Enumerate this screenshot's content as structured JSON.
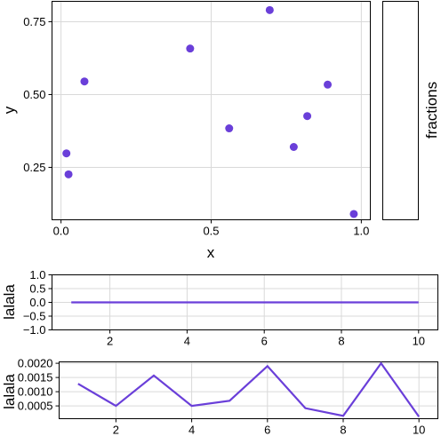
{
  "chart_data": [
    {
      "type": "scatter",
      "xlabel": "x",
      "ylabel": "y",
      "xlim": [
        -0.03,
        1.03
      ],
      "ylim": [
        0.07,
        0.82
      ],
      "xticks": [
        0.0,
        0.5,
        1.0
      ],
      "xtick_labels": [
        "0.0",
        "0.5",
        "1.0"
      ],
      "yticks": [
        0.25,
        0.5,
        0.75
      ],
      "ytick_labels": [
        "0.25",
        "0.50",
        "0.75"
      ],
      "grid": true,
      "color": "#6a3fd9",
      "x": [
        0.018,
        0.025,
        0.078,
        0.43,
        0.56,
        0.695,
        0.775,
        0.82,
        0.888,
        0.975
      ],
      "y": [
        0.298,
        0.226,
        0.545,
        0.658,
        0.384,
        0.79,
        0.32,
        0.426,
        0.534,
        0.09
      ]
    },
    {
      "type": "legend-panel",
      "label": "fractions"
    },
    {
      "type": "line",
      "ylabel": "lalala",
      "xlim": [
        0.5,
        10.5
      ],
      "ylim": [
        -1.0,
        1.0
      ],
      "xticks": [
        2,
        4,
        6,
        8,
        10
      ],
      "yticks": [
        1.0,
        0.5,
        0.0,
        -0.5,
        -1.0
      ],
      "ytick_labels": [
        "1.0",
        "0.5",
        "0.0",
        "−0.5",
        "−1.0"
      ],
      "grid": true,
      "color": "#6a3fd9",
      "x": [
        1,
        2,
        3,
        4,
        5,
        6,
        7,
        8,
        9,
        10
      ],
      "y": [
        0,
        0,
        0,
        0,
        0,
        0,
        0,
        0,
        0,
        0
      ]
    },
    {
      "type": "line",
      "ylabel": "lalala",
      "xlim": [
        0.5,
        10.5
      ],
      "ylim": [
        5e-05,
        0.00205
      ],
      "xticks": [
        2,
        4,
        6,
        8,
        10
      ],
      "yticks": [
        0.002,
        0.0015,
        0.001,
        0.0005
      ],
      "ytick_labels": [
        "0.0020",
        "0.0015",
        "0.0010",
        "0.0005"
      ],
      "grid": true,
      "color": "#6a3fd9",
      "x": [
        1,
        2,
        3,
        4,
        5,
        6,
        7,
        8,
        9,
        10
      ],
      "y": [
        0.00128,
        0.0005,
        0.00157,
        0.0005,
        0.00068,
        0.0019,
        0.00042,
        0.00015,
        0.002,
        0.00012
      ]
    }
  ]
}
